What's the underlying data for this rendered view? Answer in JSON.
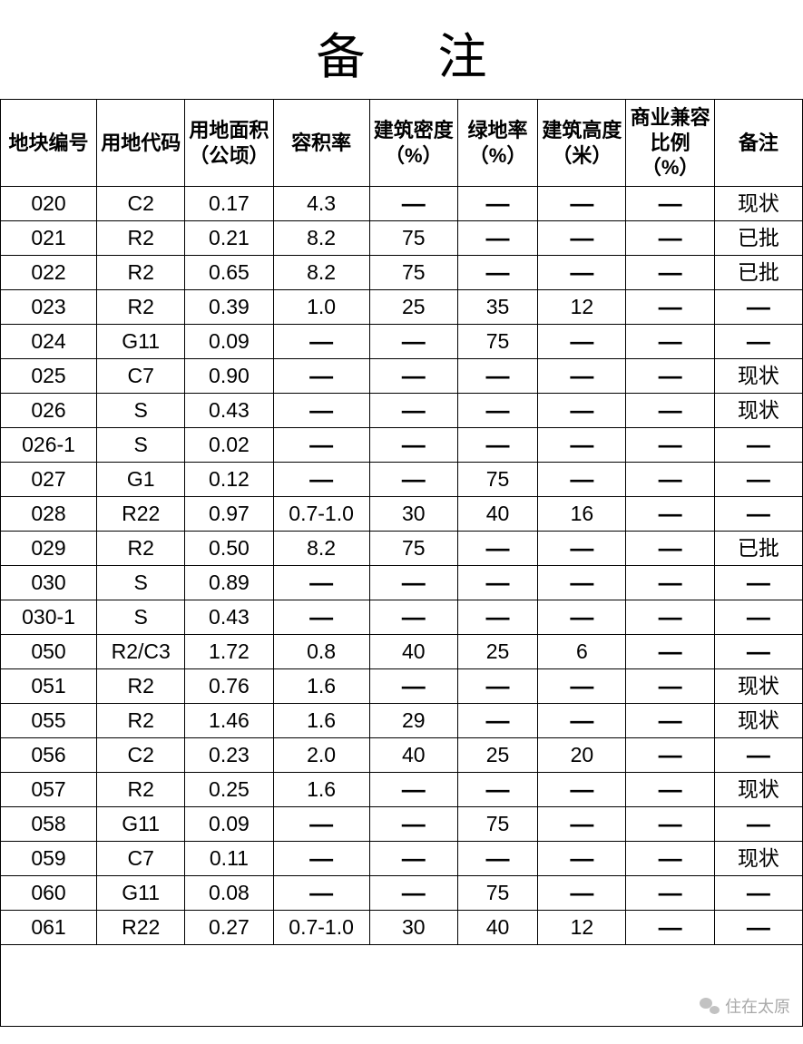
{
  "title": "备注",
  "watermark": "住在太原",
  "table": {
    "type": "table",
    "dash_glyph": "—",
    "background_color": "#ffffff",
    "border_color": "#000000",
    "text_color": "#000000",
    "header_fontsize": 22,
    "cell_fontsize": 23,
    "title_fontsize": 54,
    "column_widths_pct": [
      12,
      11,
      11,
      12,
      11,
      10,
      11,
      11,
      11
    ],
    "columns": [
      "地块编号",
      "用地代码",
      "用地面积（公顷）",
      "容积率",
      "建筑密度（%）",
      "绿地率（%）",
      "建筑高度（米）",
      "商业兼容比例（%）",
      "备注"
    ],
    "rows": [
      [
        "020",
        "C2",
        "0.17",
        "4.3",
        "—",
        "—",
        "—",
        "—",
        "现状"
      ],
      [
        "021",
        "R2",
        "0.21",
        "8.2",
        "75",
        "—",
        "—",
        "—",
        "已批"
      ],
      [
        "022",
        "R2",
        "0.65",
        "8.2",
        "75",
        "—",
        "—",
        "—",
        "已批"
      ],
      [
        "023",
        "R2",
        "0.39",
        "1.0",
        "25",
        "35",
        "12",
        "—",
        "—"
      ],
      [
        "024",
        "G11",
        "0.09",
        "—",
        "—",
        "75",
        "—",
        "—",
        "—"
      ],
      [
        "025",
        "C7",
        "0.90",
        "—",
        "—",
        "—",
        "—",
        "—",
        "现状"
      ],
      [
        "026",
        "S",
        "0.43",
        "—",
        "—",
        "—",
        "—",
        "—",
        "现状"
      ],
      [
        "026-1",
        "S",
        "0.02",
        "—",
        "—",
        "—",
        "—",
        "—",
        "—"
      ],
      [
        "027",
        "G1",
        "0.12",
        "—",
        "—",
        "75",
        "—",
        "—",
        "—"
      ],
      [
        "028",
        "R22",
        "0.97",
        "0.7-1.0",
        "30",
        "40",
        "16",
        "—",
        "—"
      ],
      [
        "029",
        "R2",
        "0.50",
        "8.2",
        "75",
        "—",
        "—",
        "—",
        "已批"
      ],
      [
        "030",
        "S",
        "0.89",
        "—",
        "—",
        "—",
        "—",
        "—",
        "—"
      ],
      [
        "030-1",
        "S",
        "0.43",
        "—",
        "—",
        "—",
        "—",
        "—",
        "—"
      ],
      [
        "050",
        "R2/C3",
        "1.72",
        "0.8",
        "40",
        "25",
        "6",
        "—",
        "—"
      ],
      [
        "051",
        "R2",
        "0.76",
        "1.6",
        "—",
        "—",
        "—",
        "—",
        "现状"
      ],
      [
        "055",
        "R2",
        "1.46",
        "1.6",
        "29",
        "—",
        "—",
        "—",
        "现状"
      ],
      [
        "056",
        "C2",
        "0.23",
        "2.0",
        "40",
        "25",
        "20",
        "—",
        "—"
      ],
      [
        "057",
        "R2",
        "0.25",
        "1.6",
        "—",
        "—",
        "—",
        "—",
        "现状"
      ],
      [
        "058",
        "G11",
        "0.09",
        "—",
        "—",
        "75",
        "—",
        "—",
        "—"
      ],
      [
        "059",
        "C7",
        "0.11",
        "—",
        "—",
        "—",
        "—",
        "—",
        "现状"
      ],
      [
        "060",
        "G11",
        "0.08",
        "—",
        "—",
        "75",
        "—",
        "—",
        "—"
      ],
      [
        "061",
        "R22",
        "0.27",
        "0.7-1.0",
        "30",
        "40",
        "12",
        "—",
        "—"
      ]
    ]
  }
}
